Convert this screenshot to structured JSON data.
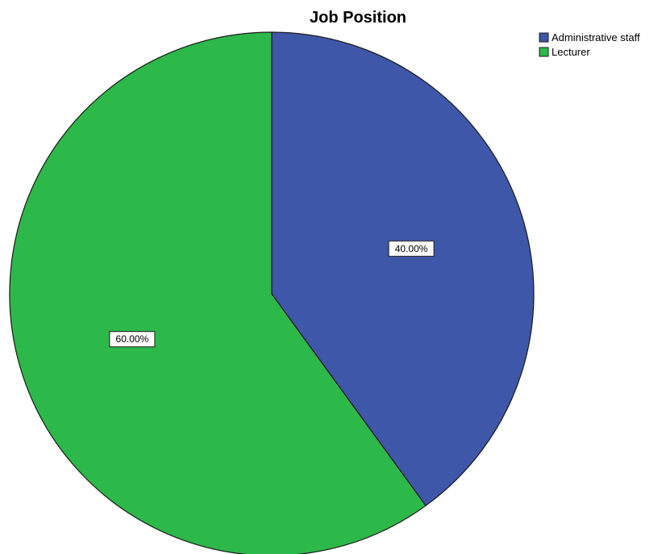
{
  "chart_data": {
    "type": "pie",
    "title": "Job Position",
    "categories": [
      "Administrative staff",
      "Lecturer"
    ],
    "values": [
      40.0,
      60.0
    ],
    "data_labels": [
      "40.00%",
      "60.00%"
    ],
    "colors": [
      "#3F57A9",
      "#2DB84A"
    ],
    "start_angle": "12 o'clock, clockwise",
    "legend": {
      "position": "top-right",
      "entries": [
        "Administrative staff",
        "Lecturer"
      ]
    }
  }
}
